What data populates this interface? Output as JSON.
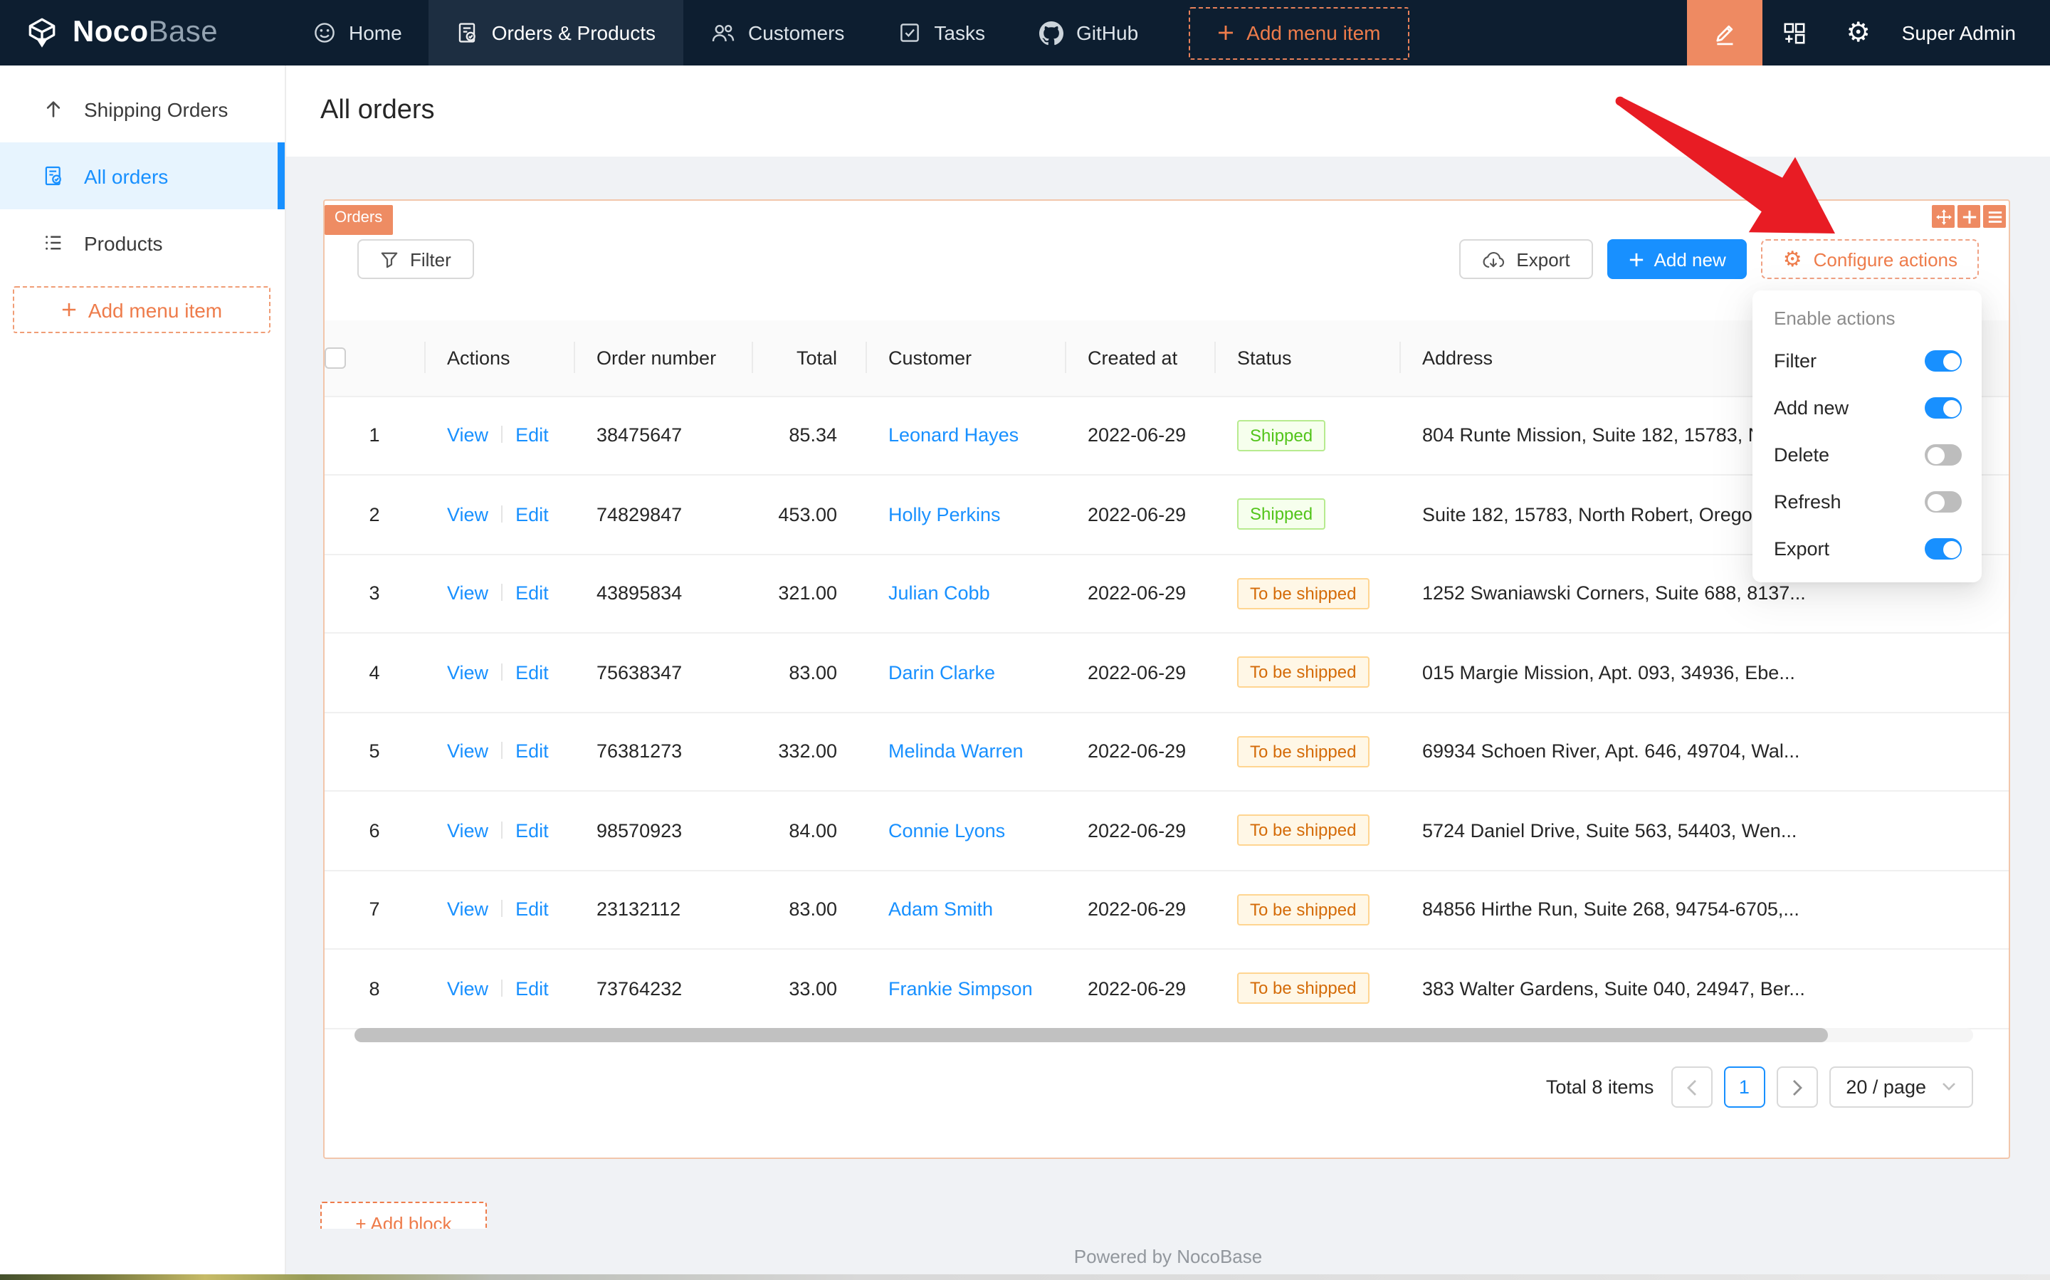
{
  "colors": {
    "nav_bg": "#0d1e30",
    "nav_active_bg": "#1d2e41",
    "designer_orange": "#ee8a62",
    "accent_orange_text": "#ee7c4b",
    "primary_blue": "#1890ff",
    "arrow_red": "#e81c24",
    "status_green": {
      "text": "#52c41a",
      "bg": "#f6ffed",
      "border": "#b7eb8f"
    },
    "status_orange": {
      "text": "#d46b08",
      "bg": "#fff7e6",
      "border": "#ffd591"
    }
  },
  "nav": {
    "logo": {
      "bold": "Noco",
      "light": "Base"
    },
    "items": [
      {
        "label": "Home",
        "icon": "smile-icon",
        "active": false
      },
      {
        "label": "Orders & Products",
        "icon": "order-file-icon",
        "active": true
      },
      {
        "label": "Customers",
        "icon": "team-icon",
        "active": false
      },
      {
        "label": "Tasks",
        "icon": "check-square-icon",
        "active": false
      },
      {
        "label": "GitHub",
        "icon": "github-icon",
        "active": false
      }
    ],
    "add_menu_item": "Add menu item",
    "user": "Super Admin"
  },
  "sidebar": {
    "items": [
      {
        "label": "Shipping Orders",
        "icon": "arrow-up-icon",
        "active": false
      },
      {
        "label": "All orders",
        "icon": "file-done-icon",
        "active": true
      },
      {
        "label": "Products",
        "icon": "list-icon",
        "active": false
      }
    ],
    "add_menu_item": "Add menu item"
  },
  "page": {
    "title": "All orders",
    "footer": "Powered by NocoBase",
    "add_block": "+ Add block"
  },
  "block": {
    "tag": "Orders",
    "filter_label": "Filter",
    "export_label": "Export",
    "add_new_label": "Add new",
    "configure_actions_label": "Configure actions"
  },
  "enable_actions": {
    "title": "Enable actions",
    "items": [
      {
        "label": "Filter",
        "enabled": true
      },
      {
        "label": "Add new",
        "enabled": true
      },
      {
        "label": "Delete",
        "enabled": false
      },
      {
        "label": "Refresh",
        "enabled": false
      },
      {
        "label": "Export",
        "enabled": true
      }
    ]
  },
  "table": {
    "columns": [
      "Actions",
      "Order number",
      "Total",
      "Customer",
      "Created at",
      "Status",
      "Address"
    ],
    "action_labels": {
      "view": "View",
      "edit": "Edit"
    },
    "rows": [
      {
        "index": 1,
        "order_number": "38475647",
        "total": "85.34",
        "customer": "Leonard Hayes",
        "created_at": "2022-06-29",
        "status": "Shipped",
        "status_color": "green",
        "address": "804 Runte Mission, Suite 182, 15783, N"
      },
      {
        "index": 2,
        "order_number": "74829847",
        "total": "453.00",
        "customer": "Holly Perkins",
        "created_at": "2022-06-29",
        "status": "Shipped",
        "status_color": "green",
        "address": "Suite 182, 15783, North Robert, Oregon"
      },
      {
        "index": 3,
        "order_number": "43895834",
        "total": "321.00",
        "customer": "Julian Cobb",
        "created_at": "2022-06-29",
        "status": "To be shipped",
        "status_color": "orange",
        "address": "1252 Swaniawski Corners, Suite 688, 8137..."
      },
      {
        "index": 4,
        "order_number": "75638347",
        "total": "83.00",
        "customer": "Darin Clarke",
        "created_at": "2022-06-29",
        "status": "To be shipped",
        "status_color": "orange",
        "address": "015 Margie Mission, Apt. 093, 34936, Ebe..."
      },
      {
        "index": 5,
        "order_number": "76381273",
        "total": "332.00",
        "customer": "Melinda Warren",
        "created_at": "2022-06-29",
        "status": "To be shipped",
        "status_color": "orange",
        "address": "69934 Schoen River, Apt. 646, 49704, Wal..."
      },
      {
        "index": 6,
        "order_number": "98570923",
        "total": "84.00",
        "customer": "Connie Lyons",
        "created_at": "2022-06-29",
        "status": "To be shipped",
        "status_color": "orange",
        "address": "5724 Daniel Drive, Suite 563, 54403, Wen..."
      },
      {
        "index": 7,
        "order_number": "23132112",
        "total": "83.00",
        "customer": "Adam Smith",
        "created_at": "2022-06-29",
        "status": "To be shipped",
        "status_color": "orange",
        "address": "84856 Hirthe Run, Suite 268, 94754-6705,..."
      },
      {
        "index": 8,
        "order_number": "73764232",
        "total": "33.00",
        "customer": "Frankie Simpson",
        "created_at": "2022-06-29",
        "status": "To be shipped",
        "status_color": "orange",
        "address": "383 Walter Gardens, Suite 040, 24947, Ber..."
      }
    ]
  },
  "pagination": {
    "total": "Total 8 items",
    "current_page": "1",
    "page_size": "20 / page"
  }
}
